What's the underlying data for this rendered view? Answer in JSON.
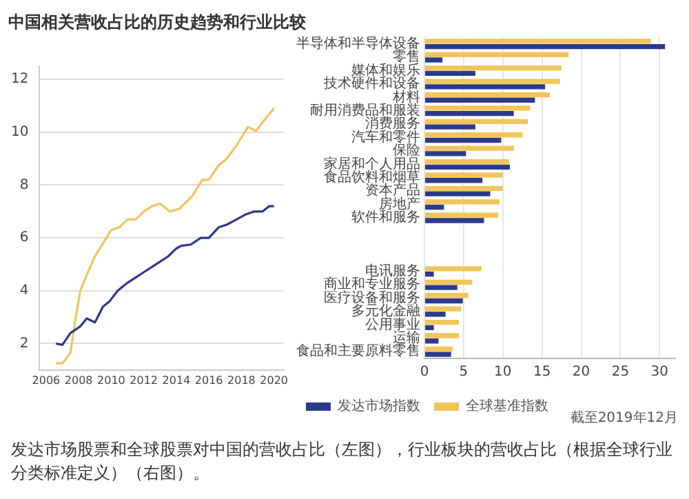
{
  "chart_data": [
    {
      "type": "line",
      "title": "中国相关营收占比的历史趋势和行业比较",
      "xlim": [
        2005.6,
        2020.6
      ],
      "xticks": [
        2006,
        2008,
        2010,
        2012,
        2014,
        2016,
        2018,
        2020
      ],
      "ylim": [
        1,
        12.5
      ],
      "yticks": [
        2,
        4,
        6,
        8,
        10,
        12
      ],
      "grid": "y",
      "legend": false,
      "marker": "none",
      "line_style": "solid",
      "series": [
        {
          "color": "#2b3a8c",
          "x": [
            2006.6,
            2007.0,
            2007.5,
            2008.1,
            2008.5,
            2009.0,
            2009.5,
            2009.9,
            2010.4,
            2011.0,
            2011.5,
            2012.0,
            2012.5,
            2013.0,
            2013.5,
            2014.0,
            2014.3,
            2014.9,
            2015.5,
            2016.0,
            2016.6,
            2017.1,
            2017.7,
            2018.3,
            2018.8,
            2019.3,
            2019.7,
            2020.0
          ],
          "values": [
            2.0,
            1.95,
            2.4,
            2.65,
            2.95,
            2.8,
            3.4,
            3.6,
            4.0,
            4.3,
            4.5,
            4.7,
            4.9,
            5.1,
            5.3,
            5.6,
            5.7,
            5.75,
            6.0,
            6.0,
            6.4,
            6.5,
            6.7,
            6.9,
            7.0,
            7.0,
            7.2,
            7.2
          ]
        },
        {
          "color": "#f2c55c",
          "x": [
            2006.6,
            2007.0,
            2007.5,
            2007.8,
            2008.1,
            2008.5,
            2009.0,
            2009.5,
            2010.0,
            2010.5,
            2011.0,
            2011.5,
            2012.0,
            2012.5,
            2013.0,
            2013.6,
            2014.2,
            2015.0,
            2015.6,
            2016.0,
            2016.6,
            2017.1,
            2017.7,
            2018.4,
            2018.9,
            2019.4,
            2020.0
          ],
          "values": [
            1.25,
            1.25,
            1.65,
            2.9,
            4.0,
            4.6,
            5.3,
            5.8,
            6.3,
            6.4,
            6.7,
            6.7,
            7.0,
            7.2,
            7.3,
            7.0,
            7.1,
            7.6,
            8.2,
            8.2,
            8.75,
            9.0,
            9.5,
            10.2,
            10.05,
            10.45,
            10.9
          ]
        }
      ]
    },
    {
      "type": "bar",
      "orientation": "horizontal",
      "categories": [
        "半导体和半导体设备",
        "零售",
        "媒体和娱乐",
        "技术硬件和设备",
        "材料",
        "耐用消费品和服装",
        "消费服务",
        "汽车和零件",
        "保险",
        "家居和个人用品",
        "食品饮料和烟草",
        "资本产品",
        "房地产",
        "软件和服务",
        null,
        null,
        null,
        "电讯服务",
        "商业和专业服务",
        "医疗设备和服务",
        "多元化金融",
        "公用事业",
        "运输",
        "食品和主要原料零售"
      ],
      "xlim": [
        0,
        32
      ],
      "xticks": [
        0,
        5,
        10,
        15,
        20,
        25,
        30
      ],
      "grid": "x",
      "legend": "bottom",
      "series": [
        {
          "name": "发达市场指数",
          "color": "#2b3a8c",
          "values": [
            30.7,
            2.3,
            6.5,
            15.4,
            14.1,
            11.4,
            6.5,
            9.8,
            5.3,
            10.9,
            7.4,
            8.4,
            2.5,
            7.6,
            null,
            null,
            null,
            1.2,
            4.2,
            4.9,
            2.7,
            1.2,
            1.8,
            3.4
          ]
        },
        {
          "name": "全球基准指数",
          "color": "#f2c55c",
          "values": [
            28.9,
            18.4,
            17.5,
            17.3,
            16.0,
            13.5,
            13.2,
            12.5,
            11.4,
            10.8,
            10.0,
            10.0,
            9.6,
            9.4,
            null,
            null,
            null,
            7.3,
            6.1,
            5.6,
            4.7,
            4.4,
            4.4,
            3.6
          ]
        }
      ],
      "annotations": [
        "截至2019年12月",
        "发达市场股票和全球股票对中国的营收占比（左图），行业板块的营收占比（根据全球行业分类标准定义）（右图）。"
      ]
    }
  ]
}
